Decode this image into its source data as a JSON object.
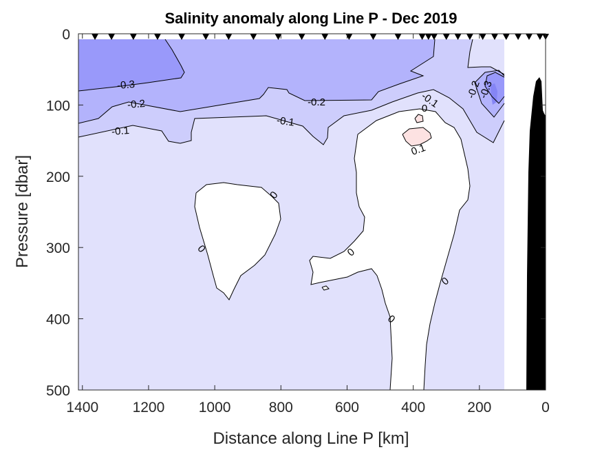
{
  "chart_data": {
    "type": "contour",
    "title": "Salinity anomaly along Line P - Dec 2019",
    "xlabel": "Distance along Line P [km]",
    "ylabel": "Pressure [dbar]",
    "xlim": [
      1412,
      0
    ],
    "ylim": [
      0,
      500
    ],
    "x_reversed": true,
    "y_reversed": true,
    "xticks": [
      1400,
      1200,
      1000,
      800,
      600,
      400,
      200,
      0
    ],
    "yticks": [
      0,
      100,
      200,
      300,
      400,
      500
    ],
    "contour_levels": [
      -0.4,
      -0.3,
      -0.2,
      -0.1,
      0,
      0.1
    ],
    "level_colors": {
      "below_-0.3": "#9999fa",
      "-0.3_to_-0.2": "#b3b3fc",
      "-0.2_to_-0.1": "#cdcdfc",
      "-0.1_to_0": "#e1e1fc",
      "0_to_0.1": "#ffffff",
      "above_0.1": "#fde2e2",
      "below_-0.4": "#8585f5"
    },
    "station_distances_km": [
      1362,
      1312,
      1246,
      1173,
      1100,
      1027,
      958,
      883,
      808,
      737,
      667,
      594,
      521,
      446,
      373,
      354,
      337,
      300,
      265,
      229,
      190,
      154,
      119,
      83,
      50,
      17,
      0
    ],
    "contour_labels": [
      "-0.3",
      "-0.2",
      "-0.1",
      "-0.2",
      "-0.1",
      "-0.1",
      "0",
      "0.1",
      "0",
      "0",
      "0",
      "0",
      "0",
      "-0.2",
      "-0.3"
    ],
    "bathymetry_color": "#000000"
  }
}
